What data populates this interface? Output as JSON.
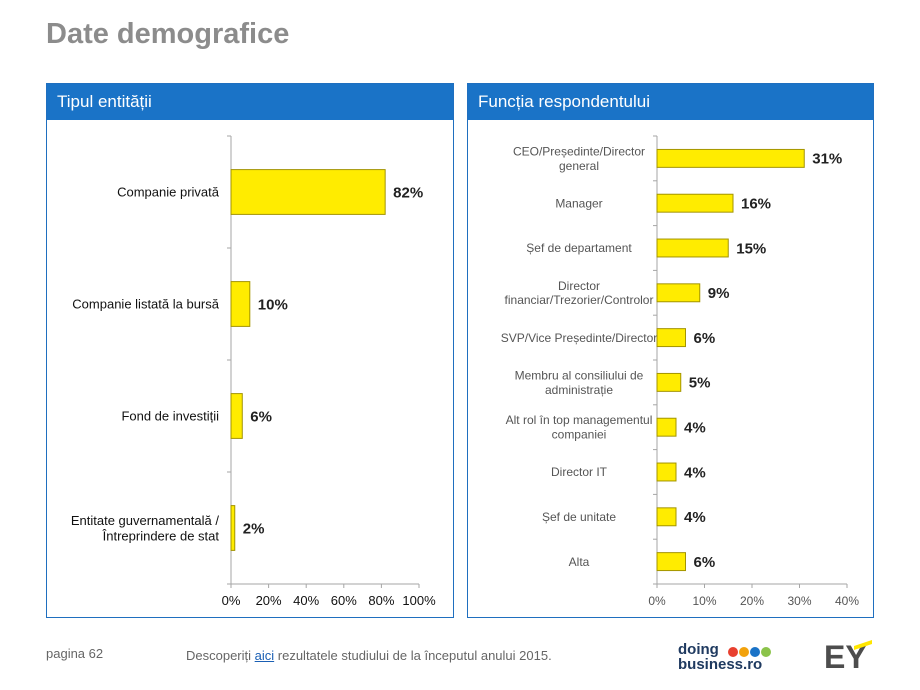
{
  "page": {
    "title": "Date demografice",
    "page_number": "pagina 62",
    "footer_prefix": "Descoperiți ",
    "footer_link": "aici",
    "footer_suffix": " rezultatele studiului de la începutul anului 2015.",
    "logo_doing_line1": "doing",
    "logo_doing_line2": "business.ro",
    "logo_ey": "EY",
    "dot_colors": [
      "#e8402f",
      "#f2a20c",
      "#1a73c7",
      "#8bc34a"
    ]
  },
  "chart_data": [
    {
      "type": "bar",
      "orientation": "horizontal",
      "title": "Tipul entității",
      "categories": [
        "Companie privată",
        "Companie listată la bursă",
        "Fond de investiții",
        "Entitate guvernamentală / Întreprindere de stat"
      ],
      "values": [
        82,
        10,
        6,
        2
      ],
      "labels": [
        "82%",
        "10%",
        "6%",
        "2%"
      ],
      "xlim": [
        0,
        100
      ],
      "xticks": [
        "0%",
        "20%",
        "40%",
        "60%",
        "80%",
        "100%"
      ],
      "bar_color": "#ffec00"
    },
    {
      "type": "bar",
      "orientation": "horizontal",
      "title": "Funcția respondentului",
      "categories": [
        "CEO/Președinte/Director general",
        "Manager",
        "Șef de departament",
        "Director financiar/Trezorier/Controlor",
        "SVP/Vice Președinte/Director",
        "Membru al consiliului de administrație",
        "Alt rol în top managementul companiei",
        "Director IT",
        "Șef de unitate",
        "Alta"
      ],
      "values": [
        31,
        16,
        15,
        9,
        6,
        5,
        4,
        4,
        4,
        6
      ],
      "labels": [
        "31%",
        "16%",
        "15%",
        "9%",
        "6%",
        "5%",
        "4%",
        "4%",
        "4%",
        "6%"
      ],
      "xlim": [
        0,
        40
      ],
      "xticks": [
        "0%",
        "10%",
        "20%",
        "30%",
        "40%"
      ],
      "bar_color": "#ffec00"
    }
  ]
}
